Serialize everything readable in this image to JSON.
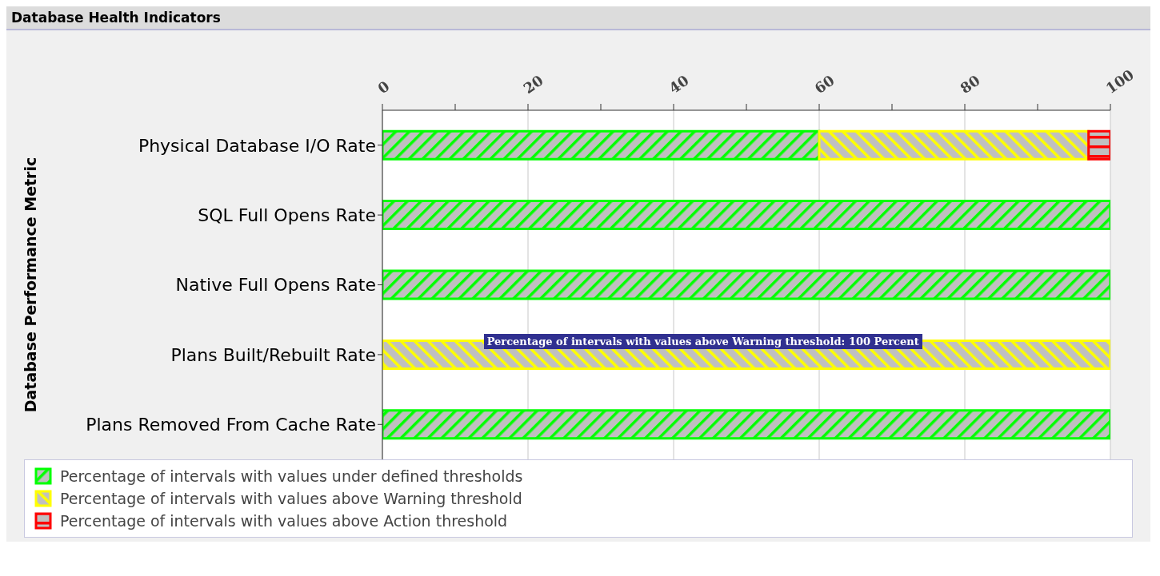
{
  "chart_data": {
    "type": "bar",
    "orientation": "horizontal",
    "stacked": true,
    "title": "Database Health Indicators",
    "ylabel": "Database Performance Metric",
    "categories": [
      "Physical Database I/O Rate",
      "SQL Full Opens Rate",
      "Native Full Opens Rate",
      "Plans Built/Rebuilt Rate",
      "Plans Removed From Cache Rate"
    ],
    "series": [
      {
        "name": "Percentage of intervals with values under defined thresholds",
        "color": "#00ff00",
        "values": [
          60,
          100,
          100,
          0,
          100
        ]
      },
      {
        "name": "Percentage of intervals with values above Warning threshold",
        "color": "#ffff00",
        "values": [
          37,
          0,
          0,
          100,
          0
        ]
      },
      {
        "name": "Percentage of intervals with values above Action threshold",
        "color": "#ff0000",
        "values": [
          3,
          0,
          0,
          0,
          0
        ]
      }
    ],
    "xlim": [
      0,
      100
    ],
    "xticks": [
      0,
      {
        "value": 10,
        "label": null
      },
      20,
      {
        "value": 30,
        "label": null
      },
      40,
      {
        "value": 50,
        "label": null
      },
      60,
      {
        "value": 70,
        "label": null
      },
      80,
      {
        "value": 90,
        "label": null
      },
      100
    ],
    "grid": "x",
    "legend": "bottom",
    "annotations": [
      "Percentage of intervals with values above Warning threshold: 100 Percent"
    ]
  }
}
